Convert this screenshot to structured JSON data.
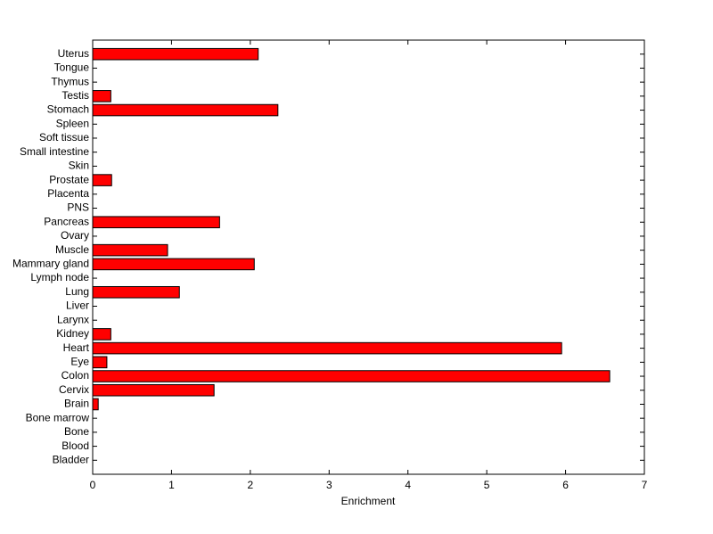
{
  "chart_data": {
    "type": "barh",
    "xlabel": "Enrichment",
    "categories": [
      "Bladder",
      "Blood",
      "Bone",
      "Bone marrow",
      "Brain",
      "Cervix",
      "Colon",
      "Eye",
      "Heart",
      "Kidney",
      "Larynx",
      "Liver",
      "Lung",
      "Lymph node",
      "Mammary gland",
      "Muscle",
      "Ovary",
      "Pancreas",
      "PNS",
      "Placenta",
      "Prostate",
      "Skin",
      "Small intestine",
      "Soft tissue",
      "Spleen",
      "Stomach",
      "Testis",
      "Thymus",
      "Tongue",
      "Uterus"
    ],
    "values": [
      0,
      0,
      0,
      0,
      0.07,
      1.54,
      6.56,
      0.18,
      5.95,
      0.23,
      0,
      0,
      1.1,
      0,
      2.05,
      0.95,
      0,
      1.61,
      0,
      0,
      0.24,
      0,
      0,
      0,
      0,
      2.35,
      0.23,
      0,
      0,
      2.1
    ],
    "color": "#ff0000",
    "xlim": [
      0,
      7
    ],
    "xticks": [
      0,
      1,
      2,
      3,
      4,
      5,
      6,
      7
    ]
  }
}
